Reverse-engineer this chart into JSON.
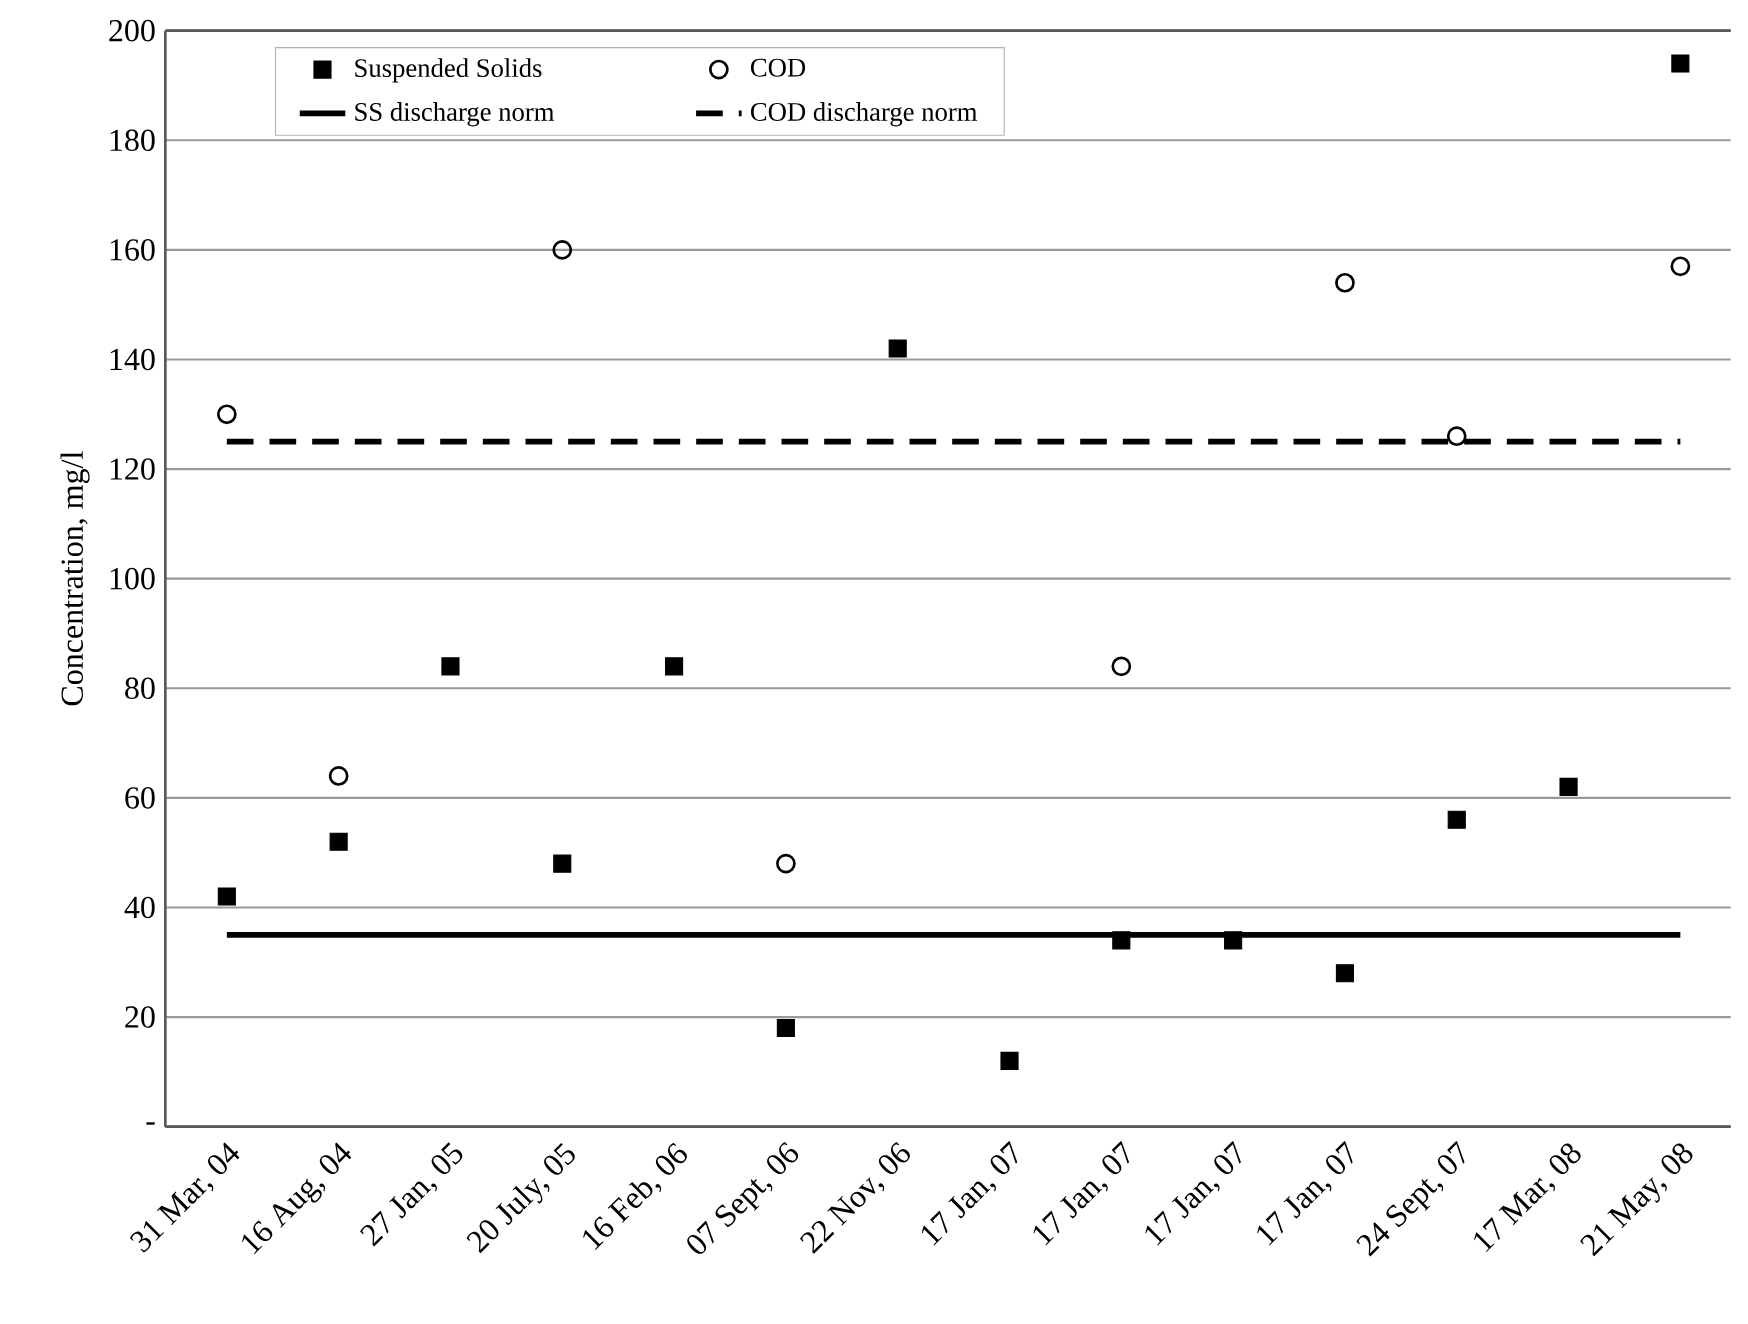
{
  "chart_data": {
    "type": "scatter",
    "ylabel": "Concentration, mg/l",
    "categories": [
      "31 Mar, 04",
      "16 Aug, 04",
      "27 Jan, 05",
      "20 July, 05",
      "16 Feb, 06",
      "07 Sept, 06",
      "22 Nov, 06",
      "17 Jan, 07",
      "17 Jan, 07",
      "17 Jan, 07",
      "17 Jan, 07",
      "24 Sept, 07",
      "17 Mar, 08",
      "21 May, 08"
    ],
    "series": [
      {
        "name": "Suspended Solids",
        "type": "scatter",
        "marker": "square",
        "color": "#000000",
        "values": [
          42,
          52,
          84,
          48,
          84,
          18,
          142,
          12,
          34,
          34,
          28,
          56,
          62,
          194
        ]
      },
      {
        "name": "COD",
        "type": "scatter",
        "marker": "circle",
        "color": "#000000",
        "values": [
          130,
          64,
          null,
          160,
          null,
          48,
          null,
          null,
          84,
          null,
          154,
          126,
          null,
          157
        ]
      },
      {
        "name": "SS discharge norm",
        "type": "line",
        "line_style": "solid",
        "color": "#000000",
        "values": [
          35,
          35,
          35,
          35,
          35,
          35,
          35,
          35,
          35,
          35,
          35,
          35,
          35,
          35
        ]
      },
      {
        "name": "COD discharge norm",
        "type": "line",
        "line_style": "dashed",
        "color": "#000000",
        "values": [
          125,
          125,
          125,
          125,
          125,
          125,
          125,
          125,
          125,
          125,
          125,
          125,
          125,
          125
        ]
      }
    ],
    "ylim": [
      0,
      200
    ],
    "yticks": [
      {
        "value": 0,
        "label": "-"
      },
      20,
      40,
      60,
      80,
      100,
      120,
      140,
      160,
      180,
      200
    ],
    "grid": "y",
    "legend": "top left"
  }
}
